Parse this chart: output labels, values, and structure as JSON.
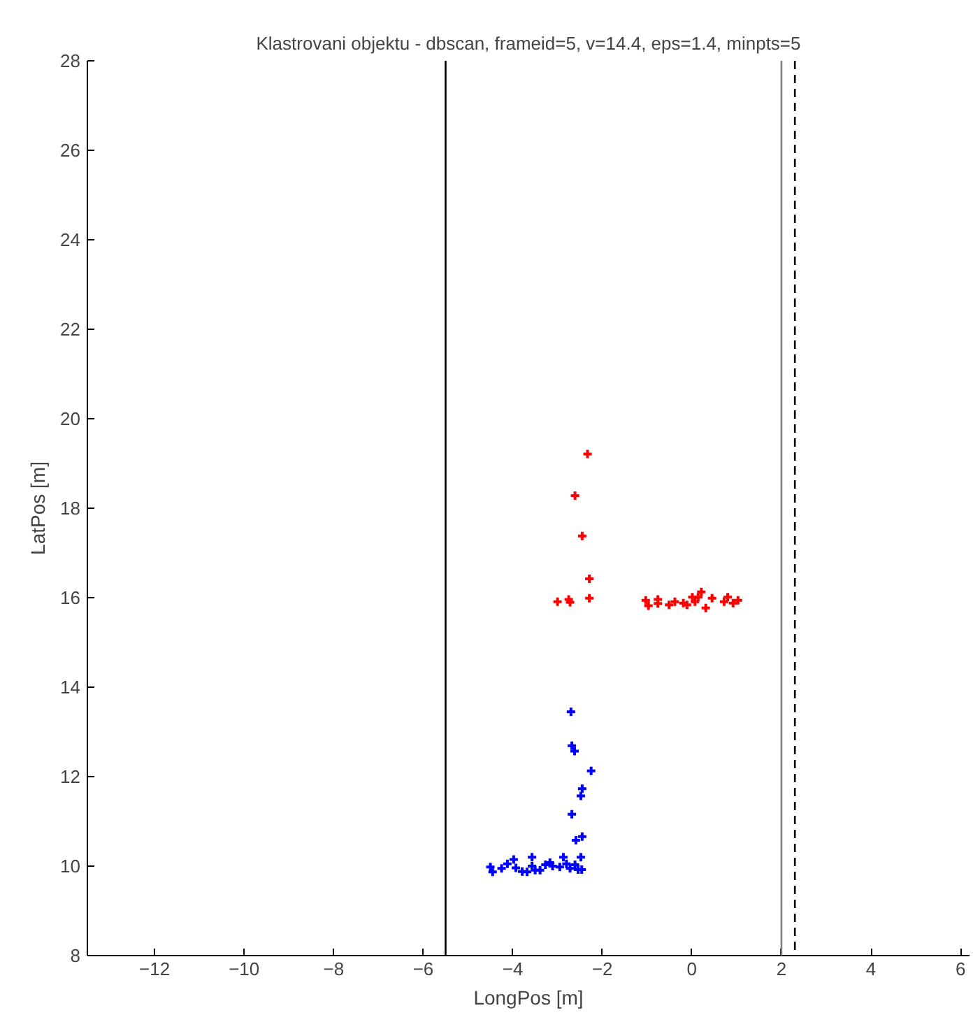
{
  "chart_data": {
    "type": "scatter",
    "title": "Klastrovani objektu - dbscan, frameid=5, v=14.4, eps=1.4, minpts=5",
    "xlabel": "LongPos [m]",
    "ylabel": "LatPos [m]",
    "xlim": [
      -13.5,
      6.2
    ],
    "ylim": [
      8,
      28
    ],
    "xticks": [
      -12,
      -10,
      -8,
      -6,
      -4,
      -2,
      0,
      2,
      4,
      6
    ],
    "yticks": [
      8,
      10,
      12,
      14,
      16,
      18,
      20,
      22,
      24,
      26,
      28
    ],
    "grid": false,
    "marker": "cross",
    "series": [
      {
        "color": "#ff0000",
        "x": [
          -2.33,
          -2.61,
          -2.45,
          -2.29,
          -2.29,
          -3.0,
          -2.75,
          -2.72,
          -1.03,
          -0.97,
          -0.76,
          -0.76,
          -0.51,
          -0.38,
          -0.19,
          -0.11,
          0.01,
          0.07,
          0.14,
          0.21,
          0.31,
          0.45,
          0.72,
          0.8,
          0.92,
          1.03
        ],
        "values": [
          19.21,
          18.28,
          17.38,
          16.42,
          15.99,
          15.91,
          15.96,
          15.9,
          15.94,
          15.82,
          15.96,
          15.87,
          15.84,
          15.91,
          15.88,
          15.84,
          16.01,
          15.91,
          16.01,
          16.13,
          15.77,
          15.99,
          15.91,
          16.01,
          15.88,
          15.94
        ]
      },
      {
        "color": "#0000ff",
        "x": [
          -2.7,
          -2.68,
          -2.62,
          -2.25,
          -2.45,
          -2.48,
          -2.68,
          -2.45,
          -2.59,
          -2.48,
          -4.5,
          -4.45,
          -4.25,
          -4.12,
          -3.98,
          -3.93,
          -3.79,
          -3.68,
          -3.57,
          -3.57,
          -3.5,
          -3.39,
          -3.27,
          -3.17,
          -3.11,
          -2.95,
          -2.87,
          -2.8,
          -2.72,
          -2.61,
          -2.54,
          -2.46
        ],
        "values": [
          13.45,
          12.69,
          12.57,
          12.13,
          11.73,
          11.57,
          11.16,
          10.66,
          10.58,
          10.2,
          9.98,
          9.87,
          9.95,
          10.05,
          10.15,
          9.96,
          9.88,
          9.87,
          10.2,
          10.0,
          9.91,
          9.91,
          10.03,
          10.08,
          10.0,
          9.98,
          10.2,
          10.05,
          9.95,
          10.03,
          9.92,
          9.92
        ]
      }
    ],
    "ref_lines": [
      {
        "axis": "x",
        "value": -5.5,
        "color": "#000000",
        "line_style": "solid"
      },
      {
        "axis": "x",
        "value": 2,
        "color": "#808080",
        "line_style": "solid"
      },
      {
        "axis": "x",
        "value": 2.3,
        "color": "#000000",
        "line_style": "dashed"
      }
    ]
  }
}
